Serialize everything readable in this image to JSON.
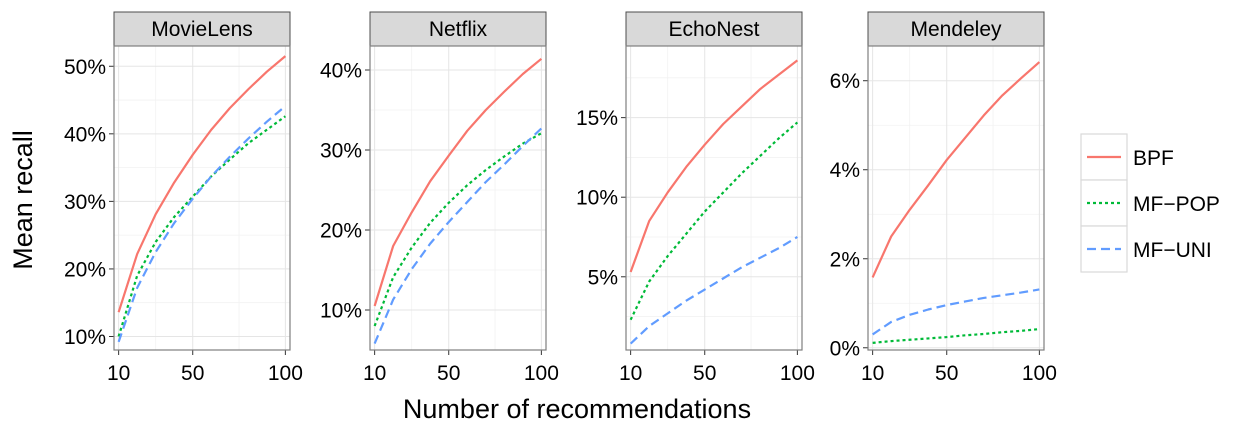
{
  "figure": {
    "xlabel": "Number of recommendations",
    "ylabel": "Mean recall"
  },
  "legend": {
    "entries": [
      {
        "name": "BPF",
        "color": "#f8766d",
        "dash": "solid"
      },
      {
        "name": "MF−POP",
        "color": "#00ba38",
        "dash": "dotted"
      },
      {
        "name": "MF−UNI",
        "color": "#619cff",
        "dash": "dashed"
      }
    ]
  },
  "chart_data": [
    {
      "type": "line",
      "title": "MovieLens",
      "xlabel": "Number of recommendations",
      "ylabel": "Mean recall",
      "xlim": [
        7.5,
        102.5
      ],
      "ylim": [
        0.08,
        0.53
      ],
      "xticks": [
        {
          "v": 10,
          "label": "10"
        },
        {
          "v": 50,
          "label": "50"
        },
        {
          "v": 100,
          "label": "100"
        }
      ],
      "yticks": [
        {
          "v": 0.1,
          "label": "10%"
        },
        {
          "v": 0.2,
          "label": "20%"
        },
        {
          "v": 0.3,
          "label": "30%"
        },
        {
          "v": 0.4,
          "label": "40%"
        },
        {
          "v": 0.5,
          "label": "50%"
        }
      ],
      "x": [
        10,
        20,
        30,
        40,
        50,
        60,
        70,
        80,
        90,
        100
      ],
      "series": [
        {
          "name": "BPF",
          "values": [
            0.136,
            0.222,
            0.281,
            0.328,
            0.369,
            0.406,
            0.438,
            0.466,
            0.492,
            0.515
          ]
        },
        {
          "name": "MF−POP",
          "values": [
            0.1,
            0.19,
            0.24,
            0.277,
            0.307,
            0.337,
            0.362,
            0.386,
            0.406,
            0.426
          ]
        },
        {
          "name": "MF−UNI",
          "values": [
            0.092,
            0.172,
            0.225,
            0.268,
            0.304,
            0.337,
            0.366,
            0.393,
            0.418,
            0.441
          ]
        }
      ]
    },
    {
      "type": "line",
      "title": "Netflix",
      "xlabel": "Number of recommendations",
      "ylabel": "Mean recall",
      "xlim": [
        7.5,
        102.5
      ],
      "ylim": [
        0.05,
        0.43
      ],
      "xticks": [
        {
          "v": 10,
          "label": "10"
        },
        {
          "v": 50,
          "label": "50"
        },
        {
          "v": 100,
          "label": "100"
        }
      ],
      "yticks": [
        {
          "v": 0.1,
          "label": "10%"
        },
        {
          "v": 0.2,
          "label": "20%"
        },
        {
          "v": 0.3,
          "label": "30%"
        },
        {
          "v": 0.4,
          "label": "40%"
        }
      ],
      "x": [
        10,
        20,
        30,
        40,
        50,
        60,
        70,
        80,
        90,
        100
      ],
      "series": [
        {
          "name": "BPF",
          "values": [
            0.105,
            0.18,
            0.222,
            0.261,
            0.293,
            0.324,
            0.35,
            0.373,
            0.395,
            0.414
          ]
        },
        {
          "name": "MF−POP",
          "values": [
            0.08,
            0.141,
            0.178,
            0.209,
            0.234,
            0.256,
            0.275,
            0.292,
            0.308,
            0.321
          ]
        },
        {
          "name": "MF−UNI",
          "values": [
            0.058,
            0.113,
            0.151,
            0.183,
            0.21,
            0.235,
            0.26,
            0.282,
            0.305,
            0.327
          ]
        }
      ]
    },
    {
      "type": "line",
      "title": "EchoNest",
      "xlabel": "Number of recommendations",
      "ylabel": "Mean recall",
      "xlim": [
        7.5,
        102.5
      ],
      "ylim": [
        0.004,
        0.195
      ],
      "xticks": [
        {
          "v": 10,
          "label": "10"
        },
        {
          "v": 50,
          "label": "50"
        },
        {
          "v": 100,
          "label": "100"
        }
      ],
      "yticks": [
        {
          "v": 0.05,
          "label": "5%"
        },
        {
          "v": 0.1,
          "label": "10%"
        },
        {
          "v": 0.15,
          "label": "15%"
        }
      ],
      "x": [
        10,
        20,
        30,
        40,
        50,
        60,
        70,
        80,
        90,
        100
      ],
      "series": [
        {
          "name": "BPF",
          "values": [
            0.053,
            0.085,
            0.103,
            0.119,
            0.133,
            0.146,
            0.157,
            0.168,
            0.177,
            0.186
          ]
        },
        {
          "name": "MF−POP",
          "values": [
            0.023,
            0.047,
            0.063,
            0.077,
            0.091,
            0.103,
            0.115,
            0.126,
            0.137,
            0.147
          ]
        },
        {
          "name": "MF−UNI",
          "values": [
            0.008,
            0.019,
            0.027,
            0.035,
            0.042,
            0.049,
            0.056,
            0.062,
            0.068,
            0.075
          ]
        }
      ]
    },
    {
      "type": "line",
      "title": "Mendeley",
      "xlabel": "Number of recommendations",
      "ylabel": "Mean recall",
      "xlim": [
        7.5,
        102.5
      ],
      "ylim": [
        -0.0005,
        0.0678
      ],
      "xticks": [
        {
          "v": 10,
          "label": "10"
        },
        {
          "v": 50,
          "label": "50"
        },
        {
          "v": 100,
          "label": "100"
        }
      ],
      "yticks": [
        {
          "v": 0.0,
          "label": "0%"
        },
        {
          "v": 0.02,
          "label": "2%"
        },
        {
          "v": 0.04,
          "label": "4%"
        },
        {
          "v": 0.06,
          "label": "6%"
        }
      ],
      "x": [
        10,
        20,
        30,
        40,
        50,
        60,
        70,
        80,
        90,
        100
      ],
      "series": [
        {
          "name": "BPF",
          "values": [
            0.0158,
            0.025,
            0.031,
            0.0365,
            0.0422,
            0.0472,
            0.0522,
            0.0567,
            0.0605,
            0.0642
          ]
        },
        {
          "name": "MF−POP",
          "values": [
            0.0011,
            0.0015,
            0.0018,
            0.0021,
            0.0024,
            0.0028,
            0.0031,
            0.0035,
            0.0038,
            0.0042
          ]
        },
        {
          "name": "MF−UNI",
          "values": [
            0.003,
            0.0058,
            0.0074,
            0.0086,
            0.0096,
            0.0104,
            0.0112,
            0.0118,
            0.0124,
            0.0131
          ]
        }
      ]
    }
  ]
}
